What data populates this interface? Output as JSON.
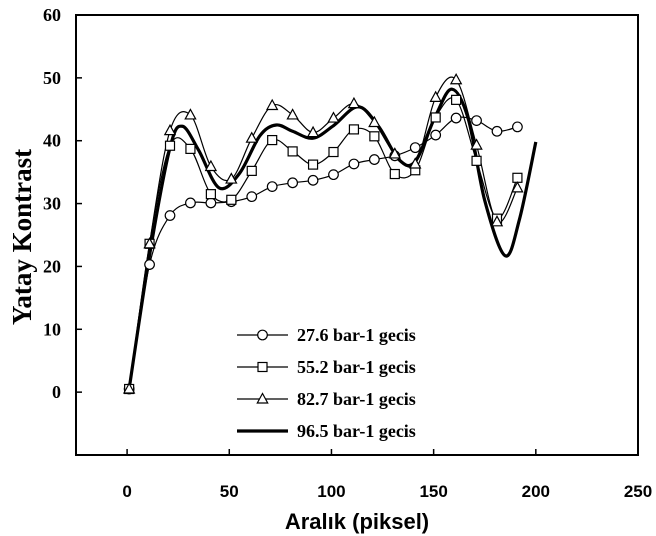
{
  "chart_data": {
    "type": "line",
    "xlabel": "Aralık (piksel)",
    "ylabel": "Yatay Kontrast",
    "xlim": [
      -25,
      250
    ],
    "ylim": [
      -10,
      60
    ],
    "xticks": [
      0,
      50,
      100,
      150,
      200,
      250
    ],
    "yticks": [
      0,
      10,
      20,
      30,
      40,
      50,
      60
    ],
    "grid": false,
    "legend_position": "bottom-center",
    "series": [
      {
        "name": "27.6 bar-1 gecis",
        "marker": "circle",
        "line_width": 1.2,
        "x": [
          1,
          11,
          21,
          31,
          41,
          51,
          61,
          71,
          81,
          91,
          101,
          111,
          121,
          131,
          141,
          151,
          161,
          171,
          181,
          191
        ],
        "y": [
          0.5,
          20.3,
          28.1,
          30.1,
          30.1,
          30.3,
          31.1,
          32.7,
          33.3,
          33.7,
          34.6,
          36.3,
          37.0,
          37.6,
          38.9,
          40.9,
          43.6,
          43.2,
          41.5,
          42.2
        ]
      },
      {
        "name": "55.2 bar-1 gecis",
        "marker": "square",
        "line_width": 1.2,
        "x": [
          1,
          11,
          21,
          31,
          41,
          51,
          61,
          71,
          81,
          91,
          101,
          111,
          121,
          131,
          141,
          151,
          161,
          171,
          181,
          191
        ],
        "y": [
          0.5,
          23.6,
          39.2,
          38.7,
          31.5,
          30.6,
          35.2,
          40.1,
          38.3,
          36.2,
          38.2,
          41.8,
          40.7,
          34.7,
          35.3,
          43.7,
          46.5,
          36.8,
          27.6,
          34.1
        ]
      },
      {
        "name": "82.7 bar-1 gecis",
        "marker": "triangle",
        "line_width": 1.2,
        "x": [
          1,
          11,
          21,
          31,
          41,
          51,
          61,
          71,
          81,
          91,
          101,
          111,
          121,
          131,
          141,
          151,
          161,
          171,
          181,
          191
        ],
        "y": [
          0.5,
          23.6,
          41.6,
          44.1,
          35.9,
          33.9,
          40.4,
          45.6,
          44.1,
          41.3,
          43.6,
          45.9,
          42.9,
          37.9,
          36.3,
          46.9,
          49.7,
          39.3,
          27.1,
          32.5
        ]
      },
      {
        "name": "96.5 bar-1 gecis",
        "marker": "none",
        "line_width": 3.2,
        "x": [
          1,
          11,
          21,
          27,
          35,
          45,
          55,
          65,
          73,
          81,
          91,
          101,
          113,
          123,
          133,
          141,
          151,
          159,
          167,
          175,
          185,
          192,
          200
        ],
        "y": [
          0.5,
          21.8,
          38.9,
          42.3,
          38.5,
          32.5,
          34.8,
          40.8,
          42.5,
          41.5,
          40.4,
          42.4,
          45.4,
          42.3,
          37.0,
          36.7,
          44.0,
          48.2,
          43.4,
          30.5,
          21.7,
          27.5,
          39.8
        ]
      }
    ]
  }
}
